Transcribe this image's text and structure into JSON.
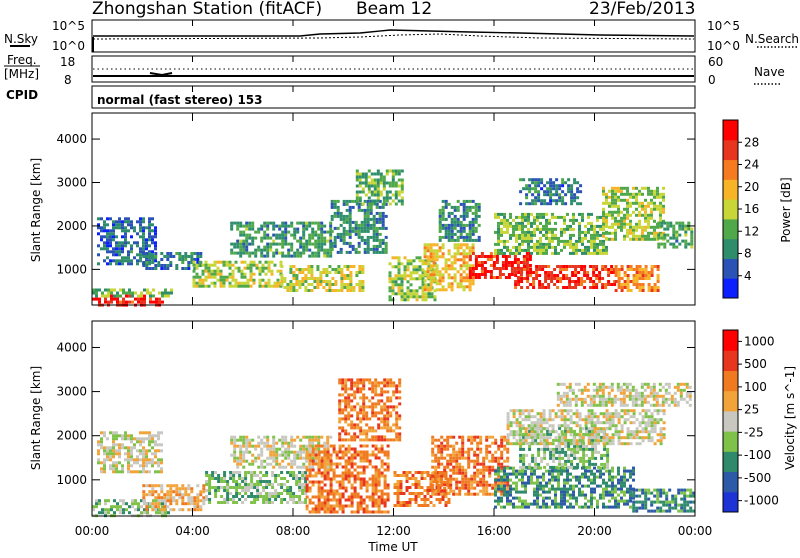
{
  "header": {
    "station": "Zhongshan Station (fitACF)",
    "beam": "Beam 12",
    "date": "23/Feb/2013"
  },
  "top_panels": {
    "nsky": {
      "label": "N.Sky",
      "left_ticks": [
        "10^5",
        "10^0"
      ],
      "right_ticks": [
        "10^5",
        "10^0"
      ],
      "right_label": "N.Search"
    },
    "freq": {
      "label_line1": "Freq.",
      "label_line2": "[MHz]",
      "left_ticks": [
        "18",
        "8"
      ],
      "right_ticks": [
        "60",
        "0"
      ],
      "right_label": "Nave"
    },
    "cpid": {
      "label": "CPID",
      "text": "normal (fast stereo) 153"
    }
  },
  "time_axis": {
    "ticks": [
      "00:00",
      "04:00",
      "08:00",
      "12:00",
      "16:00",
      "20:00",
      "00:00"
    ],
    "xlabel": "Time UT"
  },
  "chart_data": [
    {
      "type": "heatmap",
      "title": "",
      "quantity": "Power",
      "ylabel": "Slant Range [km]",
      "xlabel": "Time UT",
      "xlim": [
        0,
        24
      ],
      "ylim": [
        180,
        4600
      ],
      "yticks": [
        "1000",
        "2000",
        "3000",
        "4000"
      ],
      "colorbar": {
        "label": "Power [dB]",
        "ticks": [
          "4",
          "8",
          "12",
          "16",
          "20",
          "24",
          "28"
        ],
        "range": [
          0,
          30
        ],
        "colors": [
          "#0b1fff",
          "#2b53b5",
          "#2e8e6c",
          "#4fa84a",
          "#c8d637",
          "#f6b426",
          "#f67a20",
          "#e8351d",
          "#ff0000"
        ]
      },
      "regions": [
        {
          "t0": 0.0,
          "t1": 2.8,
          "r0": 200,
          "r1": 420,
          "level": 28
        },
        {
          "t0": 0.0,
          "t1": 3.2,
          "r0": 420,
          "r1": 560,
          "level": 12
        },
        {
          "t0": 0.2,
          "t1": 2.5,
          "r0": 1100,
          "r1": 2200,
          "level": 5
        },
        {
          "t0": 2.0,
          "t1": 4.3,
          "r0": 1000,
          "r1": 1400,
          "level": 6
        },
        {
          "t0": 4.0,
          "t1": 7.5,
          "r0": 600,
          "r1": 1200,
          "level": 14
        },
        {
          "t0": 5.5,
          "t1": 9.5,
          "r0": 1300,
          "r1": 2100,
          "level": 9
        },
        {
          "t0": 7.5,
          "t1": 10.8,
          "r0": 500,
          "r1": 1100,
          "level": 15
        },
        {
          "t0": 9.5,
          "t1": 11.7,
          "r0": 1400,
          "r1": 2600,
          "level": 7
        },
        {
          "t0": 10.5,
          "t1": 12.3,
          "r0": 2500,
          "r1": 3300,
          "level": 11
        },
        {
          "t0": 11.8,
          "t1": 13.6,
          "r0": 300,
          "r1": 1300,
          "level": 13
        },
        {
          "t0": 13.2,
          "t1": 15.2,
          "r0": 500,
          "r1": 1600,
          "level": 18
        },
        {
          "t0": 13.8,
          "t1": 15.4,
          "r0": 1700,
          "r1": 2600,
          "level": 8
        },
        {
          "t0": 15.0,
          "t1": 17.5,
          "r0": 800,
          "r1": 1400,
          "level": 28
        },
        {
          "t0": 16.8,
          "t1": 20.8,
          "r0": 600,
          "r1": 1100,
          "level": 27
        },
        {
          "t0": 16.0,
          "t1": 20.5,
          "r0": 1400,
          "r1": 2300,
          "level": 12
        },
        {
          "t0": 17.0,
          "t1": 19.5,
          "r0": 2500,
          "r1": 3100,
          "level": 6
        },
        {
          "t0": 20.8,
          "t1": 22.5,
          "r0": 500,
          "r1": 1100,
          "level": 22
        },
        {
          "t0": 20.3,
          "t1": 22.8,
          "r0": 1700,
          "r1": 2900,
          "level": 14
        },
        {
          "t0": 22.5,
          "t1": 23.9,
          "r0": 1500,
          "r1": 2100,
          "level": 10
        }
      ]
    },
    {
      "type": "heatmap",
      "title": "",
      "quantity": "Velocity",
      "ylabel": "Slant Range [km]",
      "xlabel": "Time UT",
      "xlim": [
        0,
        24
      ],
      "ylim": [
        180,
        4600
      ],
      "yticks": [
        "1000",
        "2000",
        "3000",
        "4000"
      ],
      "colorbar": {
        "label": "Velocity [m s^-1]",
        "ticks": [
          "1000",
          "500",
          "100",
          "25",
          "-25",
          "-100",
          "-500",
          "-1000"
        ],
        "colors": [
          "#1d33d6",
          "#2d5aa8",
          "#2e8a6a",
          "#7fc24a",
          "#c8c8c0",
          "#f2a43a",
          "#f07a20",
          "#e8351d",
          "#ff0000"
        ]
      },
      "regions": [
        {
          "t0": 0.0,
          "t1": 3.0,
          "r0": 200,
          "r1": 560,
          "level": 3
        },
        {
          "t0": 0.2,
          "t1": 2.8,
          "r0": 1200,
          "r1": 2100,
          "level": 4
        },
        {
          "t0": 2.0,
          "t1": 4.5,
          "r0": 300,
          "r1": 900,
          "level": 5
        },
        {
          "t0": 4.5,
          "t1": 8.5,
          "r0": 500,
          "r1": 1200,
          "level": 3
        },
        {
          "t0": 5.5,
          "t1": 9.5,
          "r0": 1300,
          "r1": 2000,
          "level": 4
        },
        {
          "t0": 8.5,
          "t1": 11.8,
          "r0": 300,
          "r1": 1800,
          "level": 6
        },
        {
          "t0": 9.8,
          "t1": 12.3,
          "r0": 1900,
          "r1": 3300,
          "level": 6
        },
        {
          "t0": 12.0,
          "t1": 14.2,
          "r0": 400,
          "r1": 1200,
          "level": 6
        },
        {
          "t0": 13.5,
          "t1": 16.5,
          "r0": 700,
          "r1": 2000,
          "level": 6
        },
        {
          "t0": 16.0,
          "t1": 21.5,
          "r0": 400,
          "r1": 1300,
          "level": 2
        },
        {
          "t0": 17.0,
          "t1": 20.5,
          "r0": 1300,
          "r1": 2200,
          "level": 3
        },
        {
          "t0": 16.5,
          "t1": 22.8,
          "r0": 1800,
          "r1": 2600,
          "level": 4
        },
        {
          "t0": 18.5,
          "t1": 23.8,
          "r0": 2700,
          "r1": 3200,
          "level": 4
        },
        {
          "t0": 21.5,
          "t1": 23.9,
          "r0": 300,
          "r1": 800,
          "level": 2
        }
      ]
    }
  ]
}
